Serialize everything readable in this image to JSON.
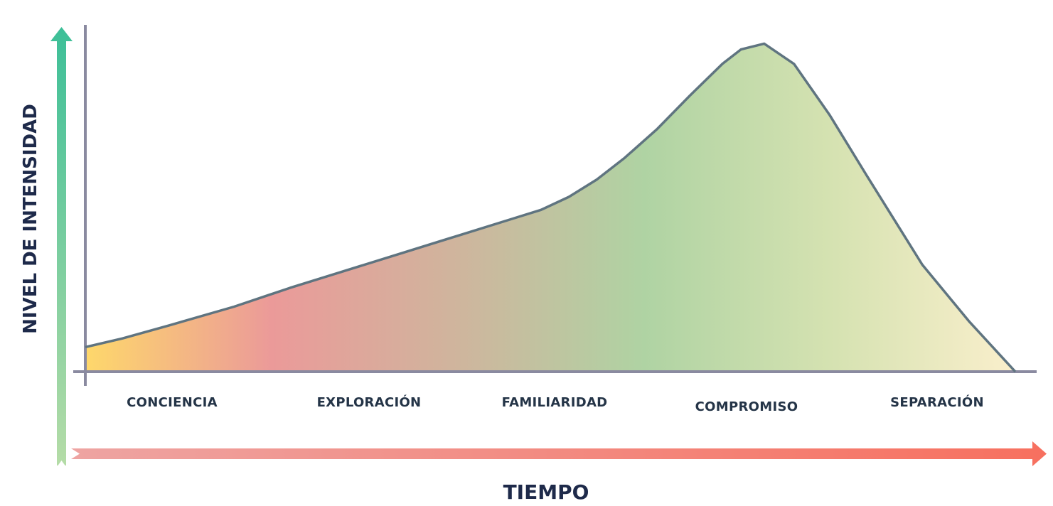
{
  "chart_data": {
    "type": "area",
    "xlabel": "TIEMPO",
    "ylabel": "NIVEL DE INTENSIDAD",
    "categories": [
      "CONCIENCIA",
      "EXPLORACIÓN",
      "FAMILIARIDAD",
      "COMPROMISO",
      "SEPARACIÓN"
    ],
    "x": [
      0,
      0.04,
      0.09,
      0.16,
      0.22,
      0.28,
      0.34,
      0.4,
      0.46,
      0.49,
      0.52,
      0.55,
      0.58,
      0.615,
      0.65,
      0.685,
      0.705,
      0.73,
      0.762,
      0.8,
      0.84,
      0.9,
      0.95,
      1.0
    ],
    "values": [
      0.085,
      0.115,
      0.16,
      0.225,
      0.29,
      0.35,
      0.41,
      0.47,
      0.53,
      0.56,
      0.605,
      0.665,
      0.74,
      0.84,
      0.955,
      1.065,
      1.115,
      1.135,
      1.065,
      0.89,
      0.68,
      0.37,
      0.175,
      0.0
    ],
    "ylim": [
      0,
      1.2
    ],
    "xlim": [
      0,
      1
    ],
    "grid": false,
    "legend": "none",
    "colors": {
      "axis": "#8a8aa0",
      "outline": "#5f7480",
      "gradient": [
        "#fed86b",
        "#eb9a99",
        "#cfb59d",
        "#afd3a3",
        "#d5e2b1",
        "#faefcc"
      ],
      "y_arrow": [
        "#3dbf98",
        "#b5dca7"
      ],
      "x_arrow": [
        "#eea4a2",
        "#f7705f"
      ],
      "label": "#243447",
      "title": "#1e2a4a"
    }
  }
}
